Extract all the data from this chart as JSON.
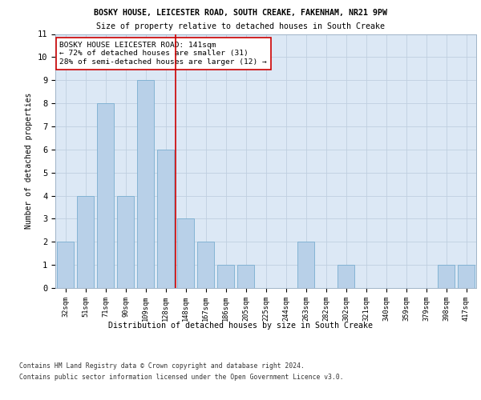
{
  "title1": "BOSKY HOUSE, LEICESTER ROAD, SOUTH CREAKE, FAKENHAM, NR21 9PW",
  "title2": "Size of property relative to detached houses in South Creake",
  "xlabel": "Distribution of detached houses by size in South Creake",
  "ylabel": "Number of detached properties",
  "categories": [
    "32sqm",
    "51sqm",
    "71sqm",
    "90sqm",
    "109sqm",
    "128sqm",
    "148sqm",
    "167sqm",
    "186sqm",
    "205sqm",
    "225sqm",
    "244sqm",
    "263sqm",
    "282sqm",
    "302sqm",
    "321sqm",
    "340sqm",
    "359sqm",
    "379sqm",
    "398sqm",
    "417sqm"
  ],
  "values": [
    2,
    4,
    8,
    4,
    9,
    6,
    3,
    2,
    1,
    1,
    0,
    0,
    2,
    0,
    1,
    0,
    0,
    0,
    0,
    1,
    1
  ],
  "bar_color": "#b8d0e8",
  "bar_edge_color": "#7aaed0",
  "ref_line_x": 5.5,
  "ref_line_color": "#cc0000",
  "annotation_text": "BOSKY HOUSE LEICESTER ROAD: 141sqm\n← 72% of detached houses are smaller (31)\n28% of semi-detached houses are larger (12) →",
  "annotation_box_color": "#ffffff",
  "annotation_box_edge": "#cc0000",
  "ylim": [
    0,
    11
  ],
  "yticks": [
    0,
    1,
    2,
    3,
    4,
    5,
    6,
    7,
    8,
    9,
    10,
    11
  ],
  "footer1": "Contains HM Land Registry data © Crown copyright and database right 2024.",
  "footer2": "Contains public sector information licensed under the Open Government Licence v3.0.",
  "fig_bg_color": "#ffffff",
  "plot_bg_color": "#dce8f5"
}
